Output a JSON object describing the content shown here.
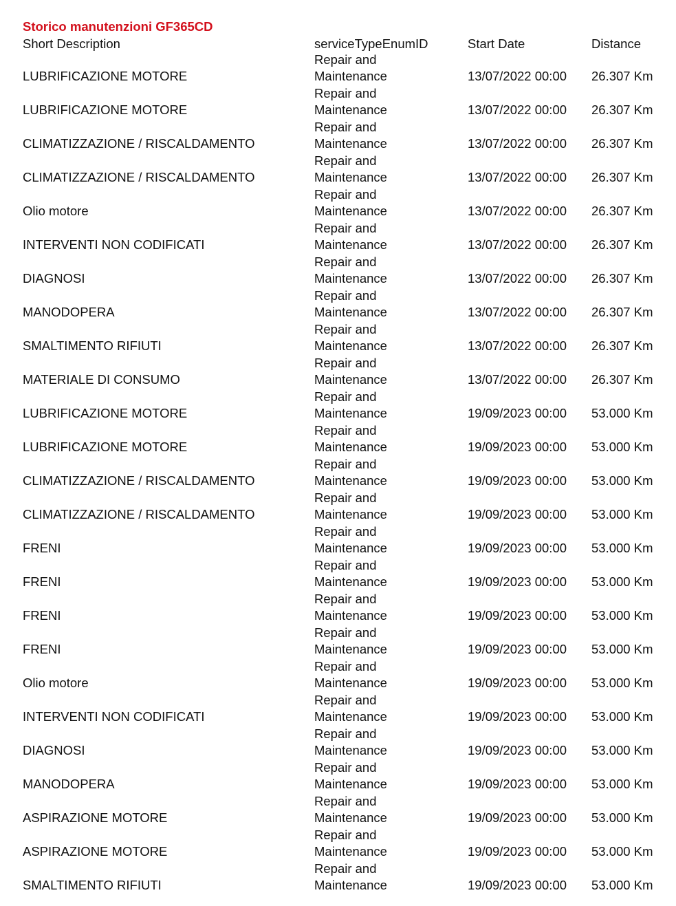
{
  "title": "Storico manutenzioni GF365CD",
  "colors": {
    "title": "#d3101c"
  },
  "columns": [
    "Short Description",
    "serviceTypeEnumID",
    "Start Date",
    "Distance"
  ],
  "rows": [
    {
      "desc": "LUBRIFICAZIONE MOTORE",
      "type1": "Repair and",
      "type2": "Maintenance",
      "date": "13/07/2022 00:00",
      "distance": "26.307 Km"
    },
    {
      "desc": "LUBRIFICAZIONE MOTORE",
      "type1": "Repair and",
      "type2": "Maintenance",
      "date": "13/07/2022 00:00",
      "distance": "26.307 Km"
    },
    {
      "desc": "CLIMATIZZAZIONE / RISCALDAMENTO",
      "type1": "Repair and",
      "type2": "Maintenance",
      "date": "13/07/2022 00:00",
      "distance": "26.307 Km"
    },
    {
      "desc": "CLIMATIZZAZIONE / RISCALDAMENTO",
      "type1": "Repair and",
      "type2": "Maintenance",
      "date": "13/07/2022 00:00",
      "distance": "26.307 Km"
    },
    {
      "desc": "Olio motore",
      "type1": "Repair and",
      "type2": "Maintenance",
      "date": "13/07/2022 00:00",
      "distance": "26.307 Km"
    },
    {
      "desc": "INTERVENTI NON CODIFICATI",
      "type1": "Repair and",
      "type2": "Maintenance",
      "date": "13/07/2022 00:00",
      "distance": "26.307 Km"
    },
    {
      "desc": "DIAGNOSI",
      "type1": "Repair and",
      "type2": "Maintenance",
      "date": "13/07/2022 00:00",
      "distance": "26.307 Km"
    },
    {
      "desc": "MANODOPERA",
      "type1": "Repair and",
      "type2": "Maintenance",
      "date": "13/07/2022 00:00",
      "distance": "26.307 Km"
    },
    {
      "desc": "SMALTIMENTO RIFIUTI",
      "type1": "Repair and",
      "type2": "Maintenance",
      "date": "13/07/2022 00:00",
      "distance": "26.307 Km"
    },
    {
      "desc": "MATERIALE DI CONSUMO",
      "type1": "Repair and",
      "type2": "Maintenance",
      "date": "13/07/2022 00:00",
      "distance": "26.307 Km"
    },
    {
      "desc": "LUBRIFICAZIONE MOTORE",
      "type1": "Repair and",
      "type2": "Maintenance",
      "date": "19/09/2023 00:00",
      "distance": "53.000 Km"
    },
    {
      "desc": "LUBRIFICAZIONE MOTORE",
      "type1": "Repair and",
      "type2": "Maintenance",
      "date": "19/09/2023 00:00",
      "distance": "53.000 Km"
    },
    {
      "desc": "CLIMATIZZAZIONE / RISCALDAMENTO",
      "type1": "Repair and",
      "type2": "Maintenance",
      "date": "19/09/2023 00:00",
      "distance": "53.000 Km"
    },
    {
      "desc": "CLIMATIZZAZIONE / RISCALDAMENTO",
      "type1": "Repair and",
      "type2": "Maintenance",
      "date": "19/09/2023 00:00",
      "distance": "53.000 Km"
    },
    {
      "desc": "FRENI",
      "type1": "Repair and",
      "type2": "Maintenance",
      "date": "19/09/2023 00:00",
      "distance": "53.000 Km"
    },
    {
      "desc": "FRENI",
      "type1": "Repair and",
      "type2": "Maintenance",
      "date": "19/09/2023 00:00",
      "distance": "53.000 Km"
    },
    {
      "desc": "FRENI",
      "type1": "Repair and",
      "type2": "Maintenance",
      "date": "19/09/2023 00:00",
      "distance": "53.000 Km"
    },
    {
      "desc": "FRENI",
      "type1": "Repair and",
      "type2": "Maintenance",
      "date": "19/09/2023 00:00",
      "distance": "53.000 Km"
    },
    {
      "desc": "Olio motore",
      "type1": "Repair and",
      "type2": "Maintenance",
      "date": "19/09/2023 00:00",
      "distance": "53.000 Km"
    },
    {
      "desc": "INTERVENTI NON CODIFICATI",
      "type1": "Repair and",
      "type2": "Maintenance",
      "date": "19/09/2023 00:00",
      "distance": "53.000 Km"
    },
    {
      "desc": "DIAGNOSI",
      "type1": "Repair and",
      "type2": "Maintenance",
      "date": "19/09/2023 00:00",
      "distance": "53.000 Km"
    },
    {
      "desc": "MANODOPERA",
      "type1": "Repair and",
      "type2": "Maintenance",
      "date": "19/09/2023 00:00",
      "distance": "53.000 Km"
    },
    {
      "desc": "ASPIRAZIONE MOTORE",
      "type1": "Repair and",
      "type2": "Maintenance",
      "date": "19/09/2023 00:00",
      "distance": "53.000 Km"
    },
    {
      "desc": "ASPIRAZIONE MOTORE",
      "type1": "Repair and",
      "type2": "Maintenance",
      "date": "19/09/2023 00:00",
      "distance": "53.000 Km"
    },
    {
      "desc": "SMALTIMENTO RIFIUTI",
      "type1": "Repair and",
      "type2": "Maintenance",
      "date": "19/09/2023 00:00",
      "distance": "53.000 Km"
    }
  ]
}
